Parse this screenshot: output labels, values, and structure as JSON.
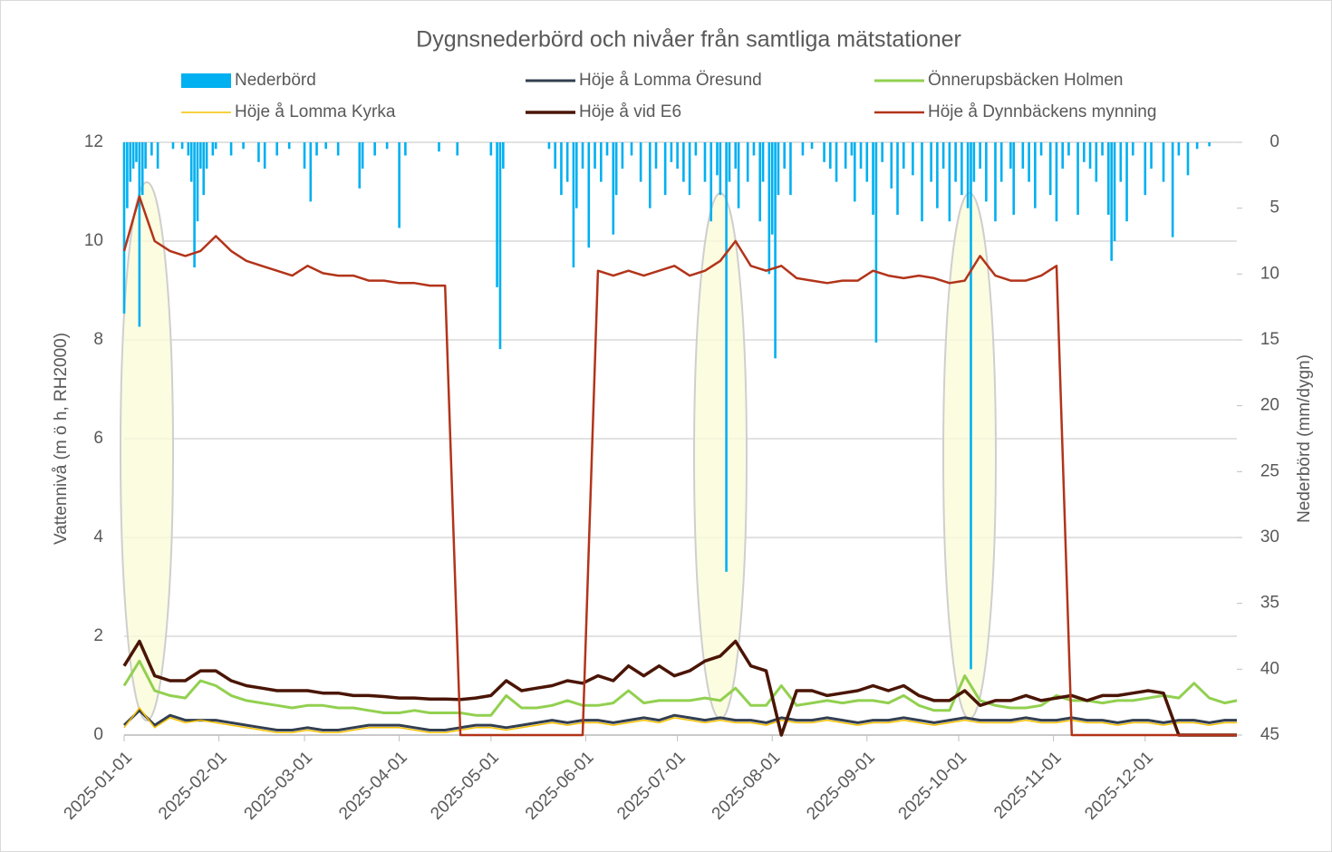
{
  "chart_data": {
    "type": "line",
    "title": "Dygnsnederbörd och nivåer från samtliga mätstationer",
    "y_label": "Vattennivå (m ö h, RH2000)",
    "y2_label": "Nederbörd (mm/dygn)",
    "xlim": [
      "2025-01-01",
      "2025-12-31"
    ],
    "xticks": [
      "2025-01-01",
      "2025-02-01",
      "2025-03-01",
      "2025-04-01",
      "2025-05-01",
      "2025-06-01",
      "2025-07-01",
      "2025-08-01",
      "2025-09-01",
      "2025-10-01",
      "2025-11-01",
      "2025-12-01"
    ],
    "ylim": [
      0,
      12
    ],
    "yticks": [
      0,
      2,
      4,
      6,
      8,
      10,
      12
    ],
    "y2lim": [
      0,
      45
    ],
    "y2ticks": [
      0,
      5,
      10,
      15,
      20,
      25,
      30,
      35,
      40,
      45
    ],
    "y2_reversed": true,
    "grid": true,
    "x": [
      "2025-01-01",
      "2025-01-06",
      "2025-01-11",
      "2025-01-16",
      "2025-01-21",
      "2025-01-26",
      "2025-01-31",
      "2025-02-05",
      "2025-02-10",
      "2025-02-15",
      "2025-02-20",
      "2025-02-25",
      "2025-03-02",
      "2025-03-07",
      "2025-03-12",
      "2025-03-17",
      "2025-03-22",
      "2025-03-27",
      "2025-04-01",
      "2025-04-06",
      "2025-04-11",
      "2025-04-16",
      "2025-04-21",
      "2025-04-26",
      "2025-05-01",
      "2025-05-06",
      "2025-05-11",
      "2025-05-16",
      "2025-05-21",
      "2025-05-26",
      "2025-05-31",
      "2025-06-05",
      "2025-06-10",
      "2025-06-15",
      "2025-06-20",
      "2025-06-25",
      "2025-06-30",
      "2025-07-05",
      "2025-07-10",
      "2025-07-15",
      "2025-07-20",
      "2025-07-25",
      "2025-07-30",
      "2025-08-04",
      "2025-08-09",
      "2025-08-14",
      "2025-08-19",
      "2025-08-24",
      "2025-08-29",
      "2025-09-03",
      "2025-09-08",
      "2025-09-13",
      "2025-09-18",
      "2025-09-23",
      "2025-09-28",
      "2025-10-03",
      "2025-10-08",
      "2025-10-13",
      "2025-10-18",
      "2025-10-23",
      "2025-10-28",
      "2025-11-02",
      "2025-11-07",
      "2025-11-12",
      "2025-11-17",
      "2025-11-22",
      "2025-11-27",
      "2025-12-02",
      "2025-12-07",
      "2025-12-12",
      "2025-12-17",
      "2025-12-22",
      "2025-12-27",
      "2025-12-31"
    ],
    "series": [
      {
        "name": "Nederbörd",
        "type": "bar",
        "axis": "y2",
        "color": "#00b0f0",
        "x": [
          "2025-01-01",
          "2025-01-02",
          "2025-01-03",
          "2025-01-04",
          "2025-01-05",
          "2025-01-06",
          "2025-01-07",
          "2025-01-08",
          "2025-01-10",
          "2025-01-12",
          "2025-01-17",
          "2025-01-20",
          "2025-01-22",
          "2025-01-23",
          "2025-01-24",
          "2025-01-25",
          "2025-01-26",
          "2025-01-27",
          "2025-01-28",
          "2025-01-30",
          "2025-01-31",
          "2025-02-05",
          "2025-02-09",
          "2025-02-14",
          "2025-02-16",
          "2025-02-20",
          "2025-02-24",
          "2025-03-01",
          "2025-03-03",
          "2025-03-05",
          "2025-03-08",
          "2025-03-12",
          "2025-03-19",
          "2025-03-20",
          "2025-03-24",
          "2025-03-28",
          "2025-04-01",
          "2025-04-03",
          "2025-04-14",
          "2025-04-20",
          "2025-05-01",
          "2025-05-03",
          "2025-05-04",
          "2025-05-05",
          "2025-05-20",
          "2025-05-22",
          "2025-05-24",
          "2025-05-26",
          "2025-05-28",
          "2025-05-29",
          "2025-05-31",
          "2025-06-02",
          "2025-06-04",
          "2025-06-06",
          "2025-06-08",
          "2025-06-10",
          "2025-06-11",
          "2025-06-13",
          "2025-06-16",
          "2025-06-19",
          "2025-06-22",
          "2025-06-24",
          "2025-06-27",
          "2025-06-29",
          "2025-07-01",
          "2025-07-03",
          "2025-07-05",
          "2025-07-07",
          "2025-07-10",
          "2025-07-12",
          "2025-07-14",
          "2025-07-15",
          "2025-07-17",
          "2025-07-18",
          "2025-07-20",
          "2025-07-21",
          "2025-07-24",
          "2025-07-26",
          "2025-07-28",
          "2025-07-29",
          "2025-07-31",
          "2025-08-01",
          "2025-08-02",
          "2025-08-03",
          "2025-08-05",
          "2025-08-07",
          "2025-08-11",
          "2025-08-14",
          "2025-08-18",
          "2025-08-20",
          "2025-08-22",
          "2025-08-25",
          "2025-08-27",
          "2025-08-28",
          "2025-08-30",
          "2025-09-01",
          "2025-09-03",
          "2025-09-04",
          "2025-09-06",
          "2025-09-09",
          "2025-09-11",
          "2025-09-13",
          "2025-09-16",
          "2025-09-19",
          "2025-09-22",
          "2025-09-24",
          "2025-09-26",
          "2025-09-28",
          "2025-09-30",
          "2025-10-02",
          "2025-10-04",
          "2025-10-05",
          "2025-10-06",
          "2025-10-08",
          "2025-10-10",
          "2025-10-13",
          "2025-10-15",
          "2025-10-18",
          "2025-10-19",
          "2025-10-22",
          "2025-10-24",
          "2025-10-26",
          "2025-10-28",
          "2025-10-31",
          "2025-11-02",
          "2025-11-04",
          "2025-11-06",
          "2025-11-09",
          "2025-11-11",
          "2025-11-13",
          "2025-11-15",
          "2025-11-17",
          "2025-11-19",
          "2025-11-20",
          "2025-11-21",
          "2025-11-23",
          "2025-11-25",
          "2025-11-27",
          "2025-12-01",
          "2025-12-03",
          "2025-12-07",
          "2025-12-10",
          "2025-12-12",
          "2025-12-15",
          "2025-12-18",
          "2025-12-22"
        ],
        "values": [
          13,
          5,
          3,
          2,
          1.5,
          14,
          4,
          2,
          1,
          2,
          0.5,
          0.5,
          1,
          3,
          9.5,
          6,
          2,
          4,
          2,
          1,
          0.5,
          1,
          0.5,
          1.5,
          2,
          1,
          0.5,
          2,
          4.5,
          1,
          0.5,
          1,
          3.5,
          2,
          1,
          0.5,
          6.5,
          1,
          0.7,
          1,
          1,
          11,
          15.7,
          2,
          0.5,
          2,
          4,
          3,
          9.5,
          5,
          2,
          8,
          2,
          3,
          1,
          7,
          4,
          2,
          1,
          3,
          5,
          2,
          4,
          1.5,
          2,
          3,
          4,
          1,
          3,
          6,
          2.5,
          4,
          32.6,
          3,
          2,
          5,
          3,
          1,
          6,
          3,
          10,
          7,
          16.4,
          4,
          2,
          4,
          1,
          0.5,
          1.5,
          2,
          3,
          2,
          1,
          4.5,
          2,
          3,
          5.5,
          15.2,
          1.5,
          3.5,
          5.5,
          2,
          2.5,
          6,
          3,
          5,
          2,
          6,
          3,
          4,
          5,
          40,
          3,
          2,
          4.5,
          6,
          3,
          2,
          5.5,
          2,
          3,
          5,
          1,
          4,
          6,
          2,
          1,
          5.5,
          1.5,
          2,
          3,
          1,
          5.5,
          9,
          7.5,
          3,
          6,
          1,
          4,
          2,
          3,
          7.2,
          1,
          2.5,
          0.5,
          0.3
        ]
      },
      {
        "name": "Höje å Lomma Öresund",
        "color": "#333f50",
        "width": 3,
        "values": [
          0.2,
          0.5,
          0.2,
          0.4,
          0.3,
          0.3,
          0.3,
          0.25,
          0.2,
          0.15,
          0.1,
          0.1,
          0.15,
          0.1,
          0.1,
          0.15,
          0.2,
          0.2,
          0.2,
          0.15,
          0.1,
          0.1,
          0.15,
          0.2,
          0.2,
          0.15,
          0.2,
          0.25,
          0.3,
          0.25,
          0.3,
          0.3,
          0.25,
          0.3,
          0.35,
          0.3,
          0.4,
          0.35,
          0.3,
          0.35,
          0.3,
          0.3,
          0.25,
          0.35,
          0.3,
          0.3,
          0.35,
          0.3,
          0.25,
          0.3,
          0.3,
          0.35,
          0.3,
          0.25,
          0.3,
          0.35,
          0.3,
          0.3,
          0.3,
          0.35,
          0.3,
          0.3,
          0.35,
          0.3,
          0.3,
          0.25,
          0.3,
          0.3,
          0.25,
          0.3,
          0.3,
          0.25,
          0.3,
          0.3
        ]
      },
      {
        "name": "Önnerupsbäcken Holmen",
        "color": "#92d050",
        "width": 3,
        "values": [
          1.0,
          1.5,
          0.9,
          0.8,
          0.75,
          1.1,
          1.0,
          0.8,
          0.7,
          0.65,
          0.6,
          0.55,
          0.6,
          0.6,
          0.55,
          0.55,
          0.5,
          0.45,
          0.45,
          0.5,
          0.45,
          0.45,
          0.45,
          0.4,
          0.4,
          0.8,
          0.55,
          0.55,
          0.6,
          0.7,
          0.6,
          0.6,
          0.65,
          0.9,
          0.65,
          0.7,
          0.7,
          0.7,
          0.75,
          0.7,
          0.95,
          0.6,
          0.6,
          1.0,
          0.6,
          0.65,
          0.7,
          0.65,
          0.7,
          0.7,
          0.65,
          0.8,
          0.6,
          0.5,
          0.5,
          1.2,
          0.7,
          0.6,
          0.55,
          0.55,
          0.6,
          0.8,
          0.7,
          0.7,
          0.65,
          0.7,
          0.7,
          0.75,
          0.8,
          0.75,
          1.05,
          0.75,
          0.65,
          0.7
        ]
      },
      {
        "name": "Höje å Lomma Kyrka",
        "color": "#f5c000",
        "width": 1.5,
        "values": [
          0.15,
          0.55,
          0.15,
          0.35,
          0.25,
          0.3,
          0.25,
          0.2,
          0.15,
          0.1,
          0.05,
          0.05,
          0.1,
          0.05,
          0.05,
          0.1,
          0.15,
          0.15,
          0.15,
          0.1,
          0.05,
          0.05,
          0.1,
          0.15,
          0.15,
          0.1,
          0.15,
          0.2,
          0.25,
          0.2,
          0.25,
          0.25,
          0.2,
          0.25,
          0.3,
          0.25,
          0.35,
          0.3,
          0.25,
          0.3,
          0.25,
          0.25,
          0.2,
          0.3,
          0.25,
          0.25,
          0.3,
          0.25,
          0.2,
          0.25,
          0.25,
          0.3,
          0.25,
          0.2,
          0.25,
          0.3,
          0.25,
          0.25,
          0.25,
          0.3,
          0.25,
          0.25,
          0.3,
          0.25,
          0.25,
          0.2,
          0.25,
          0.25,
          0.2,
          0.25,
          0.25,
          0.2,
          0.25,
          0.25
        ]
      },
      {
        "name": "Höje å vid E6",
        "color": "#4a1505",
        "width": 3.5,
        "values": [
          1.4,
          1.9,
          1.2,
          1.1,
          1.1,
          1.3,
          1.3,
          1.1,
          1.0,
          0.95,
          0.9,
          0.9,
          0.9,
          0.85,
          0.85,
          0.8,
          0.8,
          0.78,
          0.75,
          0.75,
          0.73,
          0.73,
          0.72,
          0.75,
          0.8,
          1.1,
          0.9,
          0.95,
          1.0,
          1.1,
          1.05,
          1.2,
          1.1,
          1.4,
          1.2,
          1.4,
          1.2,
          1.3,
          1.5,
          1.6,
          1.9,
          1.4,
          1.3,
          0,
          0.9,
          0.9,
          0.8,
          0.85,
          0.9,
          1.0,
          0.9,
          1.0,
          0.8,
          0.7,
          0.7,
          0.9,
          0.6,
          0.7,
          0.7,
          0.8,
          0.7,
          0.75,
          0.8,
          0.7,
          0.8,
          0.8,
          0.85,
          0.9,
          0.85,
          0,
          0,
          0,
          0,
          0
        ]
      },
      {
        "name": "Höje å Dynnbäckens mynning",
        "color": "#b2341a",
        "width": 2.5,
        "values": [
          9.8,
          10.9,
          10.0,
          9.8,
          9.7,
          9.8,
          10.1,
          9.8,
          9.6,
          9.5,
          9.4,
          9.3,
          9.5,
          9.35,
          9.3,
          9.3,
          9.2,
          9.2,
          9.15,
          9.15,
          9.1,
          9.1,
          0,
          0,
          0,
          0,
          0,
          0,
          0,
          0,
          0,
          9.4,
          9.3,
          9.4,
          9.3,
          9.4,
          9.5,
          9.3,
          9.4,
          9.6,
          10.0,
          9.5,
          9.4,
          9.5,
          9.25,
          9.2,
          9.15,
          9.2,
          9.2,
          9.4,
          9.3,
          9.25,
          9.3,
          9.25,
          9.15,
          9.2,
          9.7,
          9.3,
          9.2,
          9.2,
          9.3,
          9.5,
          0,
          0,
          0,
          0,
          0,
          0,
          0,
          0,
          0,
          0,
          0,
          0
        ]
      }
    ]
  }
}
